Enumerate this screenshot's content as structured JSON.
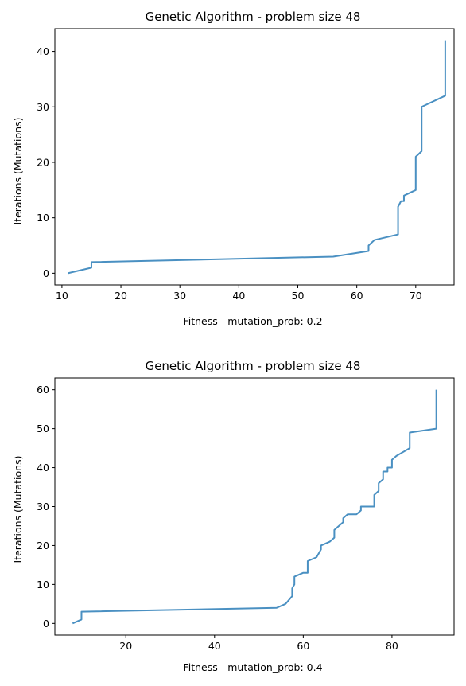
{
  "chart_data": [
    {
      "type": "line",
      "title": "Genetic Algorithm - problem size 48",
      "xlabel": "Fitness - mutation_prob: 0.2",
      "ylabel": "Iterations (Mutations)",
      "xlim": [
        8.8,
        76.5
      ],
      "ylim": [
        -2.1,
        44.1
      ],
      "xticks": [
        10,
        20,
        30,
        40,
        50,
        60,
        70
      ],
      "yticks": [
        0,
        10,
        20,
        30,
        40
      ],
      "grid": false,
      "line_color": "#4a90c2",
      "series": [
        {
          "x": [
            11,
            15,
            15,
            56,
            62,
            62,
            63,
            67,
            67,
            67.5,
            68,
            68,
            70,
            70,
            71,
            71,
            75,
            75
          ],
          "y": [
            0,
            1,
            2,
            3,
            4,
            5,
            6,
            7,
            12,
            13,
            13,
            14,
            15,
            21,
            22,
            30,
            32,
            42
          ]
        }
      ]
    },
    {
      "type": "line",
      "title": "Genetic Algorithm - problem size 48",
      "xlabel": "Fitness - mutation_prob: 0.4",
      "ylabel": "Iterations (Mutations)",
      "xlim": [
        4.0,
        94.0
      ],
      "ylim": [
        -3.0,
        63.0
      ],
      "xticks": [
        20,
        40,
        60,
        80
      ],
      "yticks": [
        0,
        10,
        20,
        30,
        40,
        50,
        60
      ],
      "grid": false,
      "line_color": "#4a90c2",
      "series": [
        {
          "x": [
            8,
            10,
            10,
            54,
            56,
            57.5,
            57.5,
            58,
            58,
            60,
            61,
            61,
            63,
            63.5,
            64,
            64,
            66,
            67,
            67,
            68,
            69,
            69,
            70,
            72,
            73,
            73,
            76,
            76,
            77,
            77,
            78,
            78,
            79,
            79,
            80,
            80,
            81,
            84,
            84,
            90,
            90
          ],
          "y": [
            0,
            1,
            3,
            4,
            5,
            7,
            9,
            10,
            12,
            13,
            13,
            16,
            17,
            18,
            19,
            20,
            21,
            22,
            24,
            25,
            26,
            27,
            28,
            28,
            29,
            30,
            30,
            33,
            34,
            36,
            37,
            39,
            39,
            40,
            40,
            42,
            43,
            45,
            49,
            50,
            60
          ]
        }
      ]
    }
  ]
}
